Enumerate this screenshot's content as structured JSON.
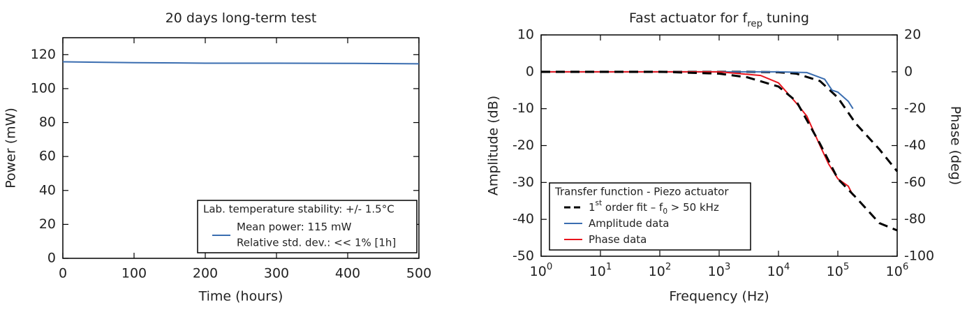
{
  "chart_data": [
    {
      "type": "line",
      "title": [
        {
          "text": "20 days long-term test"
        }
      ],
      "xlabel": "Time (hours)",
      "ylabel": "Power (mW)",
      "x": [
        0,
        100,
        200,
        300,
        400,
        500
      ],
      "series": [
        {
          "name": [
            {
              "text": "Mean power: 115 mW"
            }
          ],
          "color": "#3a6db0",
          "values": [
            115.8,
            115.3,
            115.0,
            115.0,
            114.9,
            114.6
          ]
        }
      ],
      "xlim": [
        0,
        500
      ],
      "xticks": [
        0,
        100,
        200,
        300,
        400,
        500
      ],
      "ylim": [
        0,
        130
      ],
      "yticks": [
        0,
        20,
        40,
        60,
        80,
        100,
        120
      ],
      "legend": {
        "title": "Lab. temperature stability: +/- 1.5°C",
        "note": "Relative std. dev.: << 1% [1h]",
        "corner": "lower right"
      }
    },
    {
      "type": "line",
      "title": [
        {
          "text": "Fast actuator for f"
        },
        {
          "text": "rep",
          "script": "sub"
        },
        {
          "text": " tuning"
        }
      ],
      "xlabel": "Frequency (Hz)",
      "ylabel": "Amplitude (dB)",
      "y2label": "Phase (deg)",
      "ylabel_color": "#3a6db0",
      "y2label_color": "#e8141c",
      "xscale": "log",
      "xlim": [
        1,
        1000000
      ],
      "xticks": [
        {
          "value": 1,
          "label": "10",
          "exponent": "0"
        },
        {
          "value": 10,
          "label": "10",
          "exponent": "1"
        },
        {
          "value": 100,
          "label": "10",
          "exponent": "2"
        },
        {
          "value": 1000,
          "label": "10",
          "exponent": "3"
        },
        {
          "value": 10000,
          "label": "10",
          "exponent": "4"
        },
        {
          "value": 100000,
          "label": "10",
          "exponent": "5"
        },
        {
          "value": 1000000,
          "label": "10",
          "exponent": "6"
        }
      ],
      "ylim": [
        -50,
        10
      ],
      "yticks": [
        -50,
        -40,
        -30,
        -20,
        -10,
        0,
        10
      ],
      "y2lim": [
        -100,
        20
      ],
      "y2ticks": [
        -100,
        -80,
        -60,
        -40,
        -20,
        0,
        20
      ],
      "series": [
        {
          "name": [
            {
              "text": "1"
            },
            {
              "text": "st",
              "script": "sup"
            },
            {
              "text": " order fit – f"
            },
            {
              "text": "0",
              "script": "sub"
            },
            {
              "text": " > 50 kHz"
            }
          ],
          "color": "#000000",
          "dashed": true,
          "x": [
            1,
            10,
            100,
            1000,
            3000,
            10000,
            20000,
            50000,
            100000,
            200000,
            500000,
            1000000
          ],
          "values": [
            0,
            0,
            0,
            0,
            0,
            -0.1,
            -0.5,
            -2.5,
            -7,
            -14,
            -21,
            -27
          ]
        },
        {
          "name": [
            {
              "text": "Amplitude data"
            }
          ],
          "color": "#3a6db0",
          "x": [
            1,
            10,
            100,
            1000,
            10000,
            30000,
            60000,
            80000,
            100000,
            150000,
            180000
          ],
          "values": [
            0,
            0,
            0,
            0,
            0,
            -0.2,
            -2,
            -5,
            -5.5,
            -8,
            -10
          ]
        },
        {
          "name": [
            {
              "text": "Phase data"
            }
          ],
          "color": "#e8141c",
          "axis": "y2",
          "x": [
            1,
            10,
            100,
            1000,
            5000,
            10000,
            20000,
            30000,
            50000,
            70000,
            100000,
            150000,
            180000
          ],
          "values": [
            0,
            0,
            0,
            0,
            -2,
            -6,
            -17,
            -24,
            -40,
            -50,
            -58,
            -62,
            -67
          ]
        },
        {
          "name": [
            {
              "text": "1"
            },
            {
              "text": "st",
              "script": "sup"
            },
            {
              "text": " order fit – f"
            },
            {
              "text": "0",
              "script": "sub"
            },
            {
              "text": " > 50 kHz"
            }
          ],
          "color": "#000000",
          "dashed": true,
          "axis": "y2",
          "legend": false,
          "x": [
            1,
            10,
            100,
            1000,
            3000,
            10000,
            20000,
            50000,
            100000,
            200000,
            500000,
            1000000
          ],
          "values": [
            0,
            0,
            0,
            -1,
            -3,
            -8,
            -16,
            -39,
            -58,
            -68,
            -82,
            -86
          ]
        }
      ],
      "legend": {
        "title": "Transfer function - Piezo actuator",
        "corner": "lower left"
      }
    }
  ]
}
